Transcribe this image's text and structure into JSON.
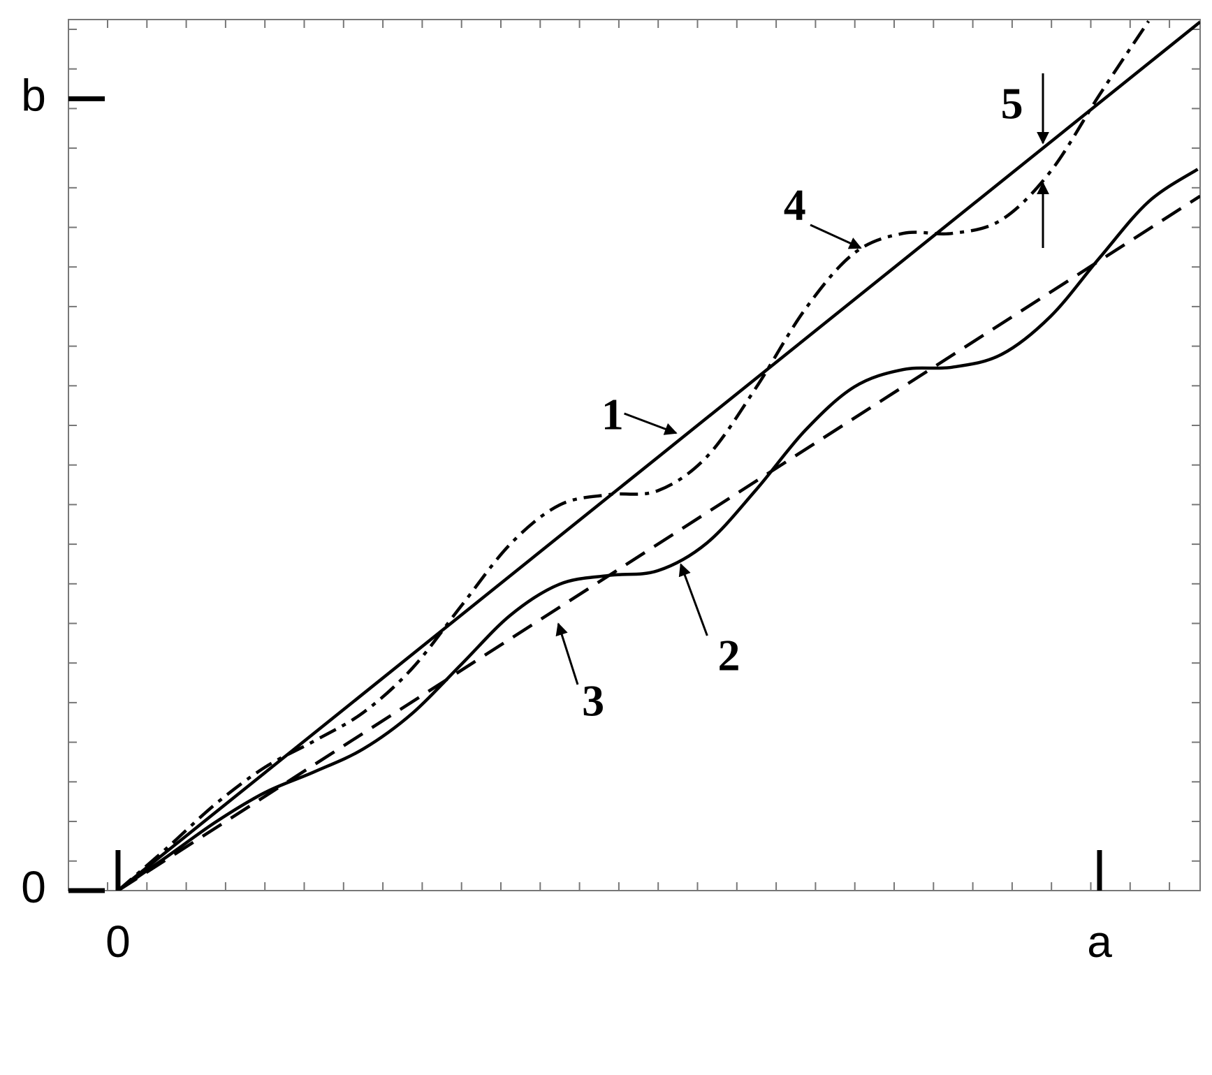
{
  "chart_data": {
    "type": "line",
    "xlim": [
      -0.0505,
      1.1025
    ],
    "ylim": [
      0,
      1.1
    ],
    "xticks": [
      0,
      {
        "value": 1,
        "label": "a"
      }
    ],
    "yticks": [
      0,
      {
        "value": 1,
        "label": "b"
      }
    ],
    "series": [
      {
        "color": "#000000",
        "style": "solid",
        "x": [
          0,
          1.1025
        ],
        "values": [
          0,
          1.097
        ]
      },
      {
        "color": "#000000",
        "style": "solid",
        "x": [
          0,
          0.05,
          0.1,
          0.15,
          0.2,
          0.25,
          0.3,
          0.35,
          0.4,
          0.45,
          0.5,
          0.55,
          0.6,
          0.65,
          0.7,
          0.75,
          0.8,
          0.85,
          0.9,
          0.95,
          1.0,
          1.05,
          1.1
        ],
        "values": [
          0,
          0.043,
          0.087,
          0.124,
          0.15,
          0.179,
          0.224,
          0.286,
          0.348,
          0.387,
          0.398,
          0.404,
          0.439,
          0.506,
          0.581,
          0.636,
          0.658,
          0.661,
          0.677,
          0.725,
          0.799,
          0.87,
          0.911
        ]
      },
      {
        "color": "#000000",
        "style": "dashed",
        "x": [
          0,
          1.1025
        ],
        "values": [
          0,
          0.877
        ]
      },
      {
        "color": "#000000",
        "style": "dashdot",
        "x": [
          0,
          0.05,
          0.1,
          0.15,
          0.2,
          0.25,
          0.3,
          0.35,
          0.4,
          0.45,
          0.5,
          0.55,
          0.6,
          0.65,
          0.7,
          0.75,
          0.8,
          0.85,
          0.9,
          0.95,
          1.0,
          1.05
        ],
        "values": [
          0,
          0.054,
          0.11,
          0.156,
          0.189,
          0.225,
          0.281,
          0.36,
          0.438,
          0.487,
          0.5,
          0.505,
          0.548,
          0.635,
          0.734,
          0.805,
          0.83,
          0.83,
          0.847,
          0.908,
          1.005,
          1.098
        ]
      }
    ],
    "annotations": [
      "1",
      "2",
      "3",
      "4",
      "5"
    ]
  }
}
